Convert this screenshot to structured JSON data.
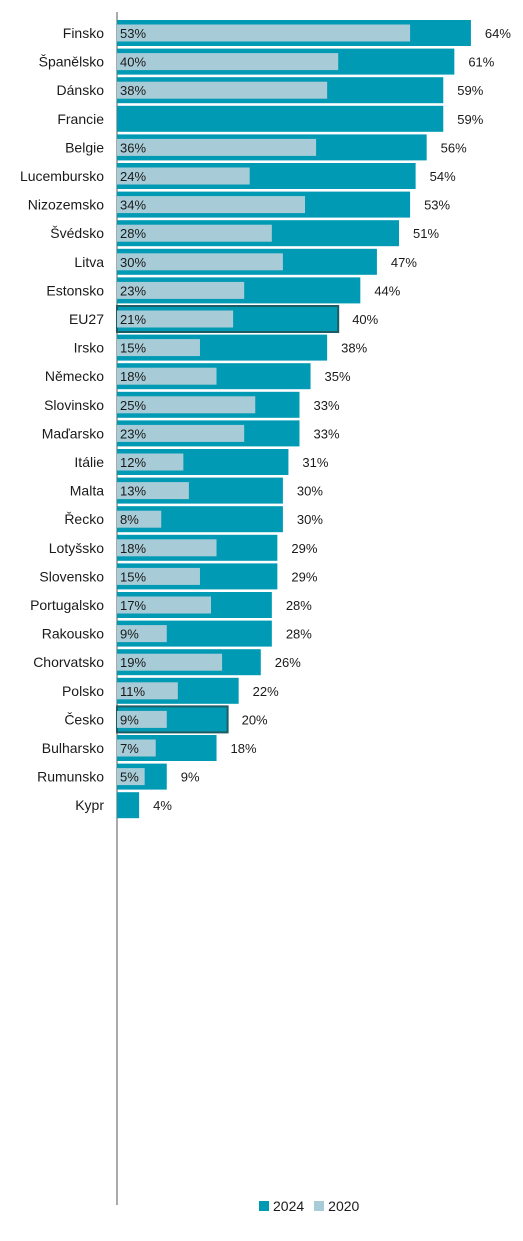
{
  "chart_data": {
    "type": "bar",
    "orientation": "horizontal",
    "categories": [
      "Finsko",
      "Španělsko",
      "Dánsko",
      "Francie",
      "Belgie",
      "Lucembursko",
      "Nizozemsko",
      "Švédsko",
      "Litva",
      "Estonsko",
      "EU27",
      "Irsko",
      "Německo",
      "Slovinsko",
      "Maďarsko",
      "Itálie",
      "Malta",
      "Řecko",
      "Lotyšsko",
      "Slovensko",
      "Portugalsko",
      "Rakousko",
      "Chorvatsko",
      "Polsko",
      "Česko",
      "Bulharsko",
      "Rumunsko",
      "Kypr"
    ],
    "series": [
      {
        "name": "2024",
        "color": "#009ab4",
        "values": [
          64,
          61,
          59,
          59,
          56,
          54,
          53,
          51,
          47,
          44,
          40,
          38,
          35,
          33,
          33,
          31,
          30,
          30,
          29,
          29,
          28,
          28,
          26,
          22,
          20,
          18,
          9,
          4
        ],
        "labels": [
          "64%",
          "61%",
          "59%",
          "59%",
          "56%",
          "54%",
          "53%",
          "51%",
          "47%",
          "44%",
          "40%",
          "38%",
          "35%",
          "33%",
          "33%",
          "31%",
          "30%",
          "30%",
          "29%",
          "29%",
          "28%",
          "28%",
          "26%",
          "22%",
          "20%",
          "18%",
          "9%",
          "4%"
        ]
      },
      {
        "name": "2020",
        "color": "#a8ccd7",
        "values": [
          53,
          40,
          38,
          null,
          36,
          24,
          34,
          28,
          30,
          23,
          21,
          15,
          18,
          25,
          23,
          12,
          13,
          8,
          18,
          15,
          17,
          9,
          19,
          11,
          9,
          7,
          5,
          null
        ],
        "labels": [
          "53%",
          "40%",
          "38%",
          "",
          "36%",
          "24%",
          "34%",
          "28%",
          "30%",
          "23%",
          "21%",
          "15%",
          "18%",
          "25%",
          "23%",
          "12%",
          "13%",
          "8%",
          "18%",
          "15%",
          "17%",
          "9%",
          "19%",
          "11%",
          "9%",
          "7%",
          "5%",
          ""
        ]
      }
    ],
    "highlighted": [
      "EU27",
      "Česko"
    ],
    "xlim": [
      0,
      66
    ],
    "legend_position": "bottom"
  },
  "legend": [
    {
      "label": "2024",
      "color": "#009ab4"
    },
    {
      "label": "2020",
      "color": "#a8ccd7"
    }
  ]
}
